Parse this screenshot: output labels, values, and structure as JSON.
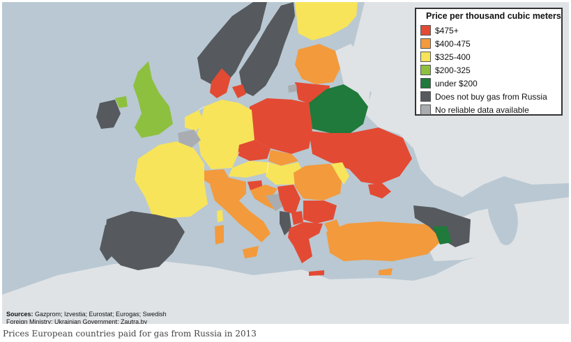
{
  "legend": {
    "title": "Price per thousand cubic meters",
    "items": [
      {
        "label": "$475+",
        "color": "#e34a33"
      },
      {
        "label": "$400-475",
        "color": "#f39a3c"
      },
      {
        "label": "$325-400",
        "color": "#f7e45a"
      },
      {
        "label": "$200-325",
        "color": "#8dc03f"
      },
      {
        "label": "under $200",
        "color": "#1f7a3b"
      },
      {
        "label": "Does not buy gas from Russia",
        "color": "#56595d"
      },
      {
        "label": "No reliable data available",
        "color": "#a9adb1"
      }
    ]
  },
  "sources": {
    "prefix": "Sources:",
    "line1": " Gazprom; Izvestia; Eurostat; Eurogas; Swedish",
    "line2": "Foreign Ministry; Ukrainian Government; Zautra.by"
  },
  "caption": "Prices European countries paid for gas from Russia in 2013",
  "colors": {
    "sea": "#b9c8d2",
    "land_outside": "#dfe3e6",
    "border": "#ffffff"
  }
}
